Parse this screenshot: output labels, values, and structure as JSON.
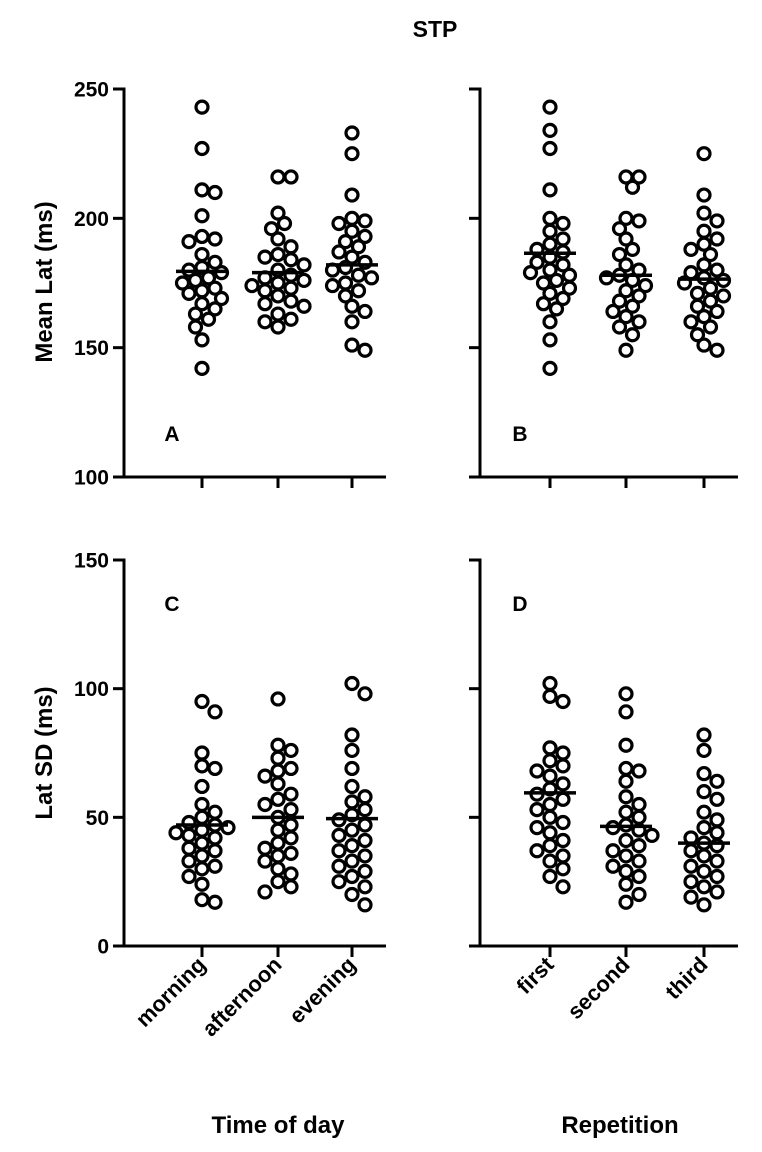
{
  "title": "STP",
  "chart_data": [
    {
      "panel": "A",
      "type": "scatter",
      "subtype": "dot-plot-with-mean",
      "ylabel": "Mean Lat (ms)",
      "ylim": [
        100,
        250
      ],
      "yticks": [
        100,
        150,
        200,
        250
      ],
      "categories": [],
      "xlabel": "",
      "series": [
        {
          "values": [
            243,
            227,
            211,
            210,
            201,
            193,
            192,
            191,
            186,
            183,
            181,
            180,
            179,
            177,
            176,
            175,
            173,
            172,
            171,
            169,
            167,
            165,
            163,
            161,
            158,
            153,
            142
          ],
          "mean": 179.5
        },
        {
          "values": [
            216,
            216,
            202,
            198,
            196,
            192,
            189,
            186,
            185,
            184,
            182,
            180,
            178,
            177,
            176,
            175,
            174,
            173,
            172,
            170,
            168,
            167,
            166,
            163,
            161,
            160,
            158
          ],
          "mean": 179
        },
        {
          "values": [
            233,
            225,
            209,
            200,
            199,
            198,
            195,
            193,
            191,
            189,
            187,
            185,
            183,
            181,
            180,
            178,
            177,
            175,
            174,
            172,
            170,
            166,
            164,
            160,
            151,
            149
          ],
          "mean": 182
        }
      ]
    },
    {
      "panel": "B",
      "type": "scatter",
      "subtype": "dot-plot-with-mean",
      "ylabel": "",
      "ylim": [
        100,
        250
      ],
      "yticks": [
        100,
        150,
        200,
        250
      ],
      "categories": [],
      "xlabel": "",
      "series": [
        {
          "values": [
            243,
            234,
            227,
            211,
            200,
            198,
            195,
            192,
            190,
            188,
            187,
            185,
            183,
            182,
            180,
            179,
            178,
            176,
            175,
            173,
            171,
            169,
            167,
            165,
            160,
            153,
            142
          ],
          "mean": 186.5
        },
        {
          "values": [
            216,
            216,
            212,
            200,
            199,
            196,
            192,
            188,
            186,
            182,
            180,
            178,
            177,
            176,
            174,
            172,
            170,
            168,
            166,
            164,
            162,
            160,
            158,
            155,
            149
          ],
          "mean": 178
        },
        {
          "values": [
            225,
            209,
            202,
            199,
            195,
            192,
            190,
            188,
            186,
            182,
            180,
            179,
            177,
            176,
            175,
            173,
            171,
            170,
            168,
            166,
            164,
            162,
            160,
            158,
            155,
            151,
            149
          ],
          "mean": 176.5
        }
      ]
    },
    {
      "panel": "C",
      "type": "scatter",
      "subtype": "dot-plot-with-mean",
      "ylabel": "Lat SD (ms)",
      "ylim": [
        0,
        150
      ],
      "yticks": [
        0,
        50,
        100,
        150
      ],
      "categories": [
        "morning",
        "afternoon",
        "evening"
      ],
      "xlabel": "Time of day",
      "series": [
        {
          "values": [
            95,
            91,
            75,
            70,
            69,
            62,
            55,
            52,
            50,
            48,
            47,
            46,
            45,
            44,
            43,
            42,
            40,
            38,
            37,
            35,
            33,
            31,
            30,
            27,
            24,
            18,
            17
          ],
          "mean": 47
        },
        {
          "values": [
            96,
            78,
            76,
            73,
            69,
            68,
            66,
            63,
            59,
            57,
            55,
            53,
            50,
            47,
            45,
            42,
            40,
            38,
            36,
            35,
            33,
            30,
            28,
            25,
            23,
            21
          ],
          "mean": 50
        },
        {
          "values": [
            102,
            98,
            82,
            76,
            69,
            62,
            58,
            56,
            53,
            51,
            49,
            47,
            45,
            43,
            41,
            39,
            37,
            35,
            33,
            31,
            29,
            27,
            25,
            23,
            20,
            16
          ],
          "mean": 49.5
        }
      ]
    },
    {
      "panel": "D",
      "type": "scatter",
      "subtype": "dot-plot-with-mean",
      "ylabel": "",
      "ylim": [
        0,
        150
      ],
      "yticks": [
        0,
        50,
        100,
        150
      ],
      "categories": [
        "first",
        "second",
        "third"
      ],
      "xlabel": "Repetition",
      "series": [
        {
          "values": [
            102,
            97,
            95,
            77,
            75,
            72,
            70,
            68,
            66,
            63,
            61,
            59,
            57,
            55,
            53,
            50,
            48,
            46,
            44,
            41,
            39,
            37,
            35,
            33,
            30,
            27,
            23
          ],
          "mean": 59.5
        },
        {
          "values": [
            98,
            91,
            78,
            69,
            68,
            64,
            58,
            55,
            52,
            50,
            47,
            46,
            45,
            43,
            41,
            39,
            37,
            35,
            33,
            31,
            29,
            27,
            24,
            20,
            17
          ],
          "mean": 46.5
        },
        {
          "values": [
            82,
            76,
            67,
            64,
            60,
            57,
            52,
            49,
            46,
            44,
            42,
            40,
            39,
            37,
            35,
            33,
            31,
            29,
            27,
            25,
            23,
            21,
            19,
            16
          ],
          "mean": 40
        }
      ]
    }
  ]
}
